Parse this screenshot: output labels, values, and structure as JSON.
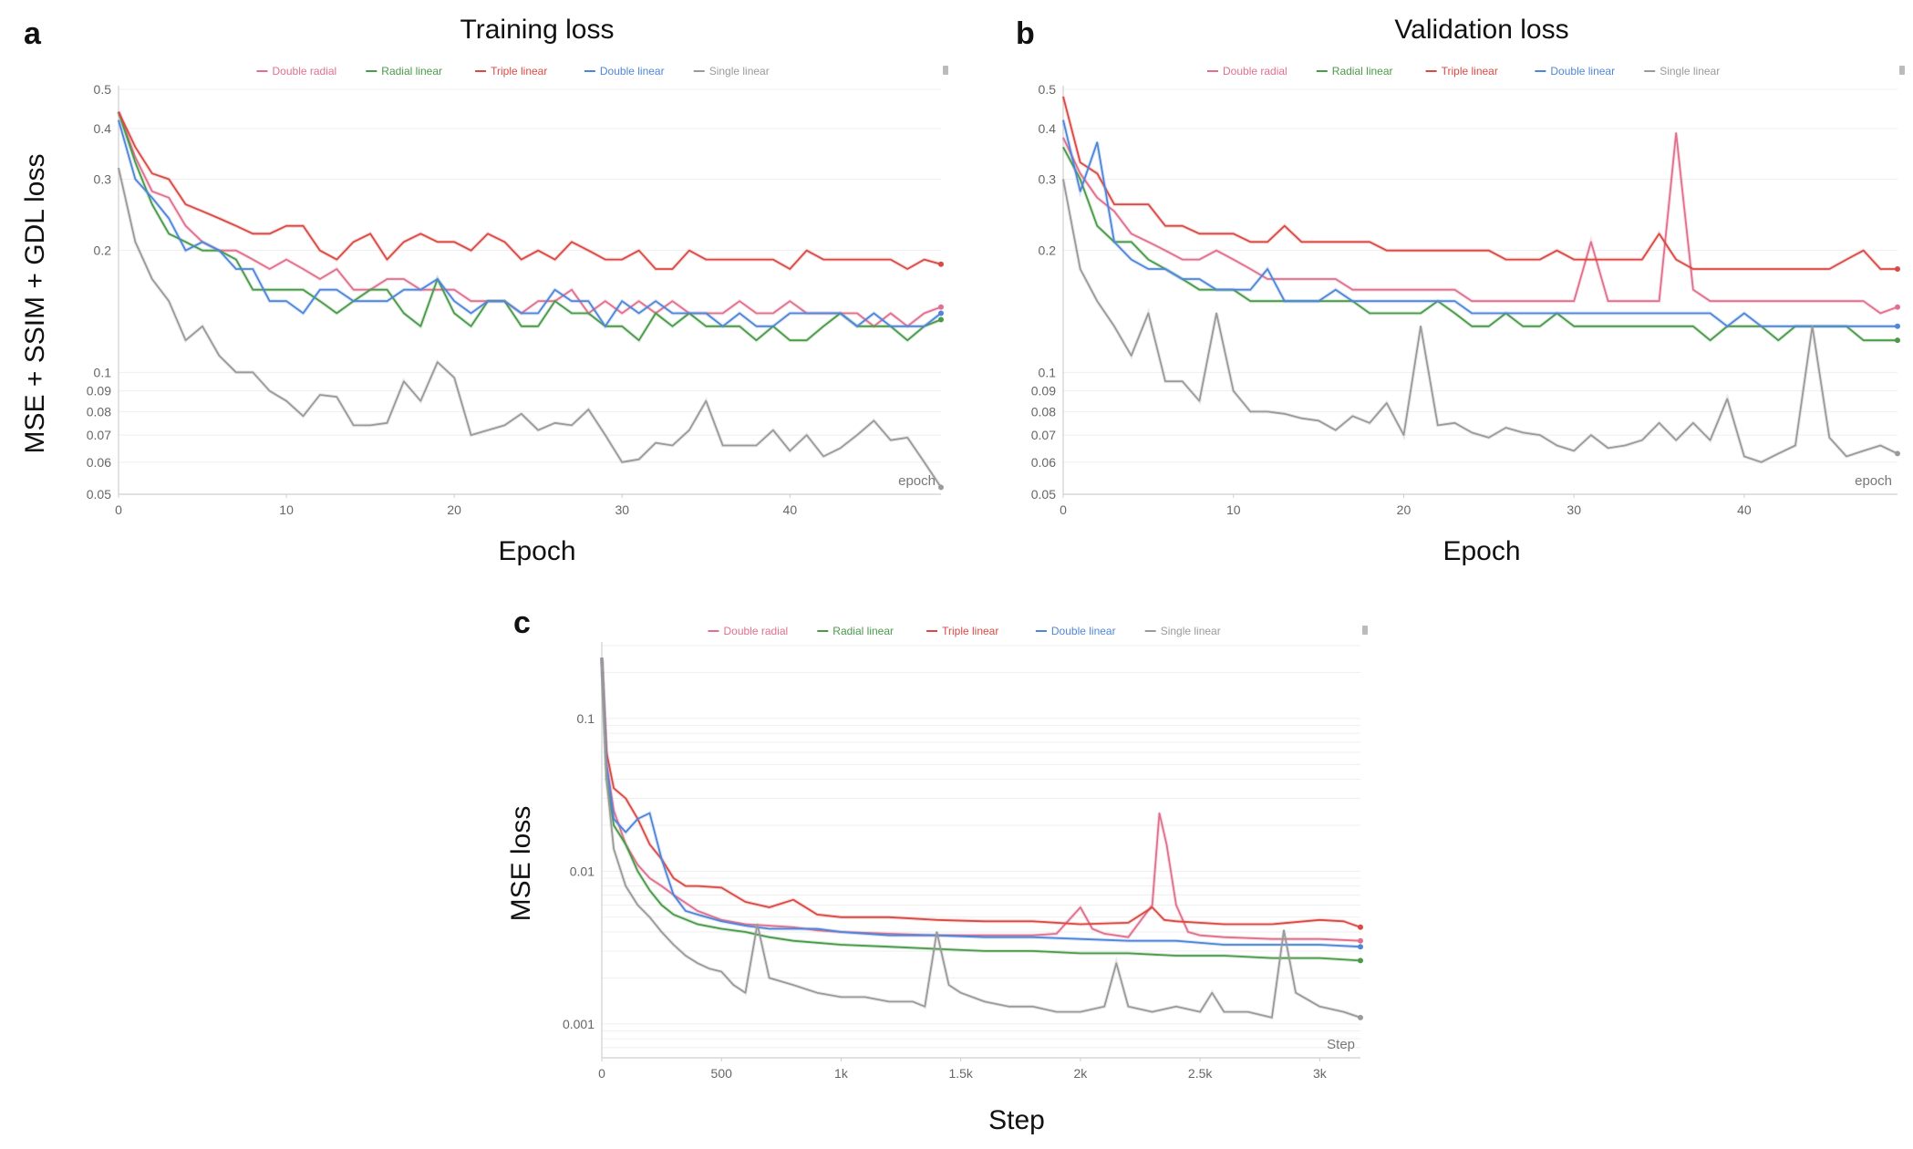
{
  "figure": {
    "panels": [
      {
        "letter": "a",
        "title": "Training loss",
        "xlabel": "Epoch",
        "ylabel": "MSE + SSIM + GDL loss"
      },
      {
        "letter": "b",
        "title": "Validation loss",
        "xlabel": "Epoch"
      },
      {
        "letter": "c",
        "xlabel": "Step",
        "ylabel": "MSE loss"
      }
    ]
  },
  "chart_data": [
    {
      "id": "a",
      "type": "line",
      "title": "Training loss",
      "xlabel": "Epoch",
      "ylabel": "MSE + SSIM + GDL loss",
      "yscale": "log",
      "xlim": [
        0,
        49
      ],
      "ylim": [
        0.05,
        0.5
      ],
      "xticks": [
        0,
        10,
        20,
        30,
        40
      ],
      "xtick_labels": [
        "0",
        "10",
        "20",
        "30",
        "40"
      ],
      "yticks": [
        0.05,
        0.06,
        0.07,
        0.08,
        0.09,
        0.1,
        0.2,
        0.3,
        0.4,
        0.5
      ],
      "ytick_labels": [
        "0.05",
        "0.06",
        "0.07",
        "0.08",
        "0.09",
        "0.1",
        "0.2",
        "0.3",
        "0.4",
        "0.5"
      ],
      "axis_tag": "epoch",
      "legend_position": "top",
      "series": [
        {
          "name": "Double radial",
          "color": "#e0708e",
          "values": [
            0.44,
            0.34,
            0.28,
            0.27,
            0.23,
            0.21,
            0.2,
            0.2,
            0.19,
            0.18,
            0.19,
            0.18,
            0.17,
            0.18,
            0.16,
            0.16,
            0.17,
            0.17,
            0.16,
            0.16,
            0.16,
            0.15,
            0.15,
            0.15,
            0.14,
            0.15,
            0.15,
            0.16,
            0.14,
            0.15,
            0.14,
            0.15,
            0.14,
            0.15,
            0.14,
            0.14,
            0.14,
            0.15,
            0.14,
            0.14,
            0.15,
            0.14,
            0.14,
            0.14,
            0.14,
            0.13,
            0.14,
            0.13,
            0.14,
            0.145
          ]
        },
        {
          "name": "Radial linear",
          "color": "#4a9a4a",
          "values": [
            0.44,
            0.33,
            0.26,
            0.22,
            0.21,
            0.2,
            0.2,
            0.19,
            0.16,
            0.16,
            0.16,
            0.16,
            0.15,
            0.14,
            0.15,
            0.16,
            0.16,
            0.14,
            0.13,
            0.17,
            0.14,
            0.13,
            0.15,
            0.15,
            0.13,
            0.13,
            0.15,
            0.14,
            0.14,
            0.13,
            0.13,
            0.12,
            0.14,
            0.13,
            0.14,
            0.13,
            0.13,
            0.13,
            0.12,
            0.13,
            0.12,
            0.12,
            0.13,
            0.14,
            0.13,
            0.13,
            0.13,
            0.12,
            0.13,
            0.135
          ]
        },
        {
          "name": "Triple linear",
          "color": "#d94a45",
          "values": [
            0.44,
            0.36,
            0.31,
            0.3,
            0.26,
            0.25,
            0.24,
            0.23,
            0.22,
            0.22,
            0.23,
            0.23,
            0.2,
            0.19,
            0.21,
            0.22,
            0.19,
            0.21,
            0.22,
            0.21,
            0.21,
            0.2,
            0.22,
            0.21,
            0.19,
            0.2,
            0.19,
            0.21,
            0.2,
            0.19,
            0.19,
            0.2,
            0.18,
            0.18,
            0.2,
            0.19,
            0.19,
            0.19,
            0.19,
            0.19,
            0.18,
            0.2,
            0.19,
            0.19,
            0.19,
            0.19,
            0.19,
            0.18,
            0.19,
            0.185
          ]
        },
        {
          "name": "Double linear",
          "color": "#4f86d9",
          "values": [
            0.42,
            0.3,
            0.27,
            0.24,
            0.2,
            0.21,
            0.2,
            0.18,
            0.18,
            0.15,
            0.15,
            0.14,
            0.16,
            0.16,
            0.15,
            0.15,
            0.15,
            0.16,
            0.16,
            0.17,
            0.15,
            0.14,
            0.15,
            0.15,
            0.14,
            0.14,
            0.16,
            0.15,
            0.15,
            0.13,
            0.15,
            0.14,
            0.15,
            0.14,
            0.14,
            0.14,
            0.13,
            0.14,
            0.13,
            0.13,
            0.14,
            0.14,
            0.14,
            0.14,
            0.13,
            0.14,
            0.13,
            0.13,
            0.13,
            0.14
          ]
        },
        {
          "name": "Single linear",
          "color": "#9a9a9a",
          "values": [
            0.32,
            0.21,
            0.17,
            0.15,
            0.12,
            0.13,
            0.11,
            0.1,
            0.1,
            0.09,
            0.085,
            0.078,
            0.088,
            0.087,
            0.074,
            0.074,
            0.075,
            0.095,
            0.085,
            0.106,
            0.097,
            0.07,
            0.072,
            0.074,
            0.079,
            0.072,
            0.075,
            0.074,
            0.081,
            0.07,
            0.06,
            0.061,
            0.067,
            0.066,
            0.072,
            0.085,
            0.066,
            0.066,
            0.066,
            0.072,
            0.064,
            0.07,
            0.062,
            0.065,
            0.07,
            0.076,
            0.068,
            0.069,
            0.06,
            0.052
          ]
        }
      ]
    },
    {
      "id": "b",
      "type": "line",
      "title": "Validation loss",
      "xlabel": "Epoch",
      "yscale": "log",
      "xlim": [
        0,
        49
      ],
      "ylim": [
        0.05,
        0.5
      ],
      "xticks": [
        0,
        10,
        20,
        30,
        40
      ],
      "xtick_labels": [
        "0",
        "10",
        "20",
        "30",
        "40"
      ],
      "yticks": [
        0.05,
        0.06,
        0.07,
        0.08,
        0.09,
        0.1,
        0.2,
        0.3,
        0.4,
        0.5
      ],
      "ytick_labels": [
        "0.05",
        "0.06",
        "0.07",
        "0.08",
        "0.09",
        "0.1",
        "0.2",
        "0.3",
        "0.4",
        "0.5"
      ],
      "axis_tag": "epoch",
      "legend_position": "top",
      "series": [
        {
          "name": "Double radial",
          "color": "#e0708e",
          "values": [
            0.38,
            0.31,
            0.27,
            0.25,
            0.22,
            0.21,
            0.2,
            0.19,
            0.19,
            0.2,
            0.19,
            0.18,
            0.17,
            0.17,
            0.17,
            0.17,
            0.17,
            0.16,
            0.16,
            0.16,
            0.16,
            0.16,
            0.16,
            0.16,
            0.15,
            0.15,
            0.15,
            0.15,
            0.15,
            0.15,
            0.15,
            0.21,
            0.15,
            0.15,
            0.15,
            0.15,
            0.39,
            0.16,
            0.15,
            0.15,
            0.15,
            0.15,
            0.15,
            0.15,
            0.15,
            0.15,
            0.15,
            0.15,
            0.14,
            0.145
          ]
        },
        {
          "name": "Radial linear",
          "color": "#4a9a4a",
          "values": [
            0.36,
            0.3,
            0.23,
            0.21,
            0.21,
            0.19,
            0.18,
            0.17,
            0.16,
            0.16,
            0.16,
            0.15,
            0.15,
            0.15,
            0.15,
            0.15,
            0.15,
            0.15,
            0.14,
            0.14,
            0.14,
            0.14,
            0.15,
            0.14,
            0.13,
            0.13,
            0.14,
            0.13,
            0.13,
            0.14,
            0.13,
            0.13,
            0.13,
            0.13,
            0.13,
            0.13,
            0.13,
            0.13,
            0.12,
            0.13,
            0.13,
            0.13,
            0.12,
            0.13,
            0.13,
            0.13,
            0.13,
            0.12,
            0.12,
            0.12
          ]
        },
        {
          "name": "Triple linear",
          "color": "#d94a45",
          "values": [
            0.48,
            0.33,
            0.31,
            0.26,
            0.26,
            0.26,
            0.23,
            0.23,
            0.22,
            0.22,
            0.22,
            0.21,
            0.21,
            0.23,
            0.21,
            0.21,
            0.21,
            0.21,
            0.21,
            0.2,
            0.2,
            0.2,
            0.2,
            0.2,
            0.2,
            0.2,
            0.19,
            0.19,
            0.19,
            0.2,
            0.19,
            0.19,
            0.19,
            0.19,
            0.19,
            0.22,
            0.19,
            0.18,
            0.18,
            0.18,
            0.18,
            0.18,
            0.18,
            0.18,
            0.18,
            0.18,
            0.19,
            0.2,
            0.18,
            0.18
          ]
        },
        {
          "name": "Double linear",
          "color": "#4f86d9",
          "values": [
            0.42,
            0.28,
            0.37,
            0.21,
            0.19,
            0.18,
            0.18,
            0.17,
            0.17,
            0.16,
            0.16,
            0.16,
            0.18,
            0.15,
            0.15,
            0.15,
            0.16,
            0.15,
            0.15,
            0.15,
            0.15,
            0.15,
            0.15,
            0.15,
            0.14,
            0.14,
            0.14,
            0.14,
            0.14,
            0.14,
            0.14,
            0.14,
            0.14,
            0.14,
            0.14,
            0.14,
            0.14,
            0.14,
            0.14,
            0.13,
            0.14,
            0.13,
            0.13,
            0.13,
            0.13,
            0.13,
            0.13,
            0.13,
            0.13,
            0.13
          ]
        },
        {
          "name": "Single linear",
          "color": "#9a9a9a",
          "values": [
            0.3,
            0.18,
            0.15,
            0.13,
            0.11,
            0.14,
            0.095,
            0.095,
            0.085,
            0.14,
            0.09,
            0.08,
            0.08,
            0.079,
            0.077,
            0.076,
            0.072,
            0.078,
            0.075,
            0.084,
            0.07,
            0.13,
            0.074,
            0.075,
            0.071,
            0.069,
            0.073,
            0.071,
            0.07,
            0.066,
            0.064,
            0.07,
            0.065,
            0.066,
            0.068,
            0.075,
            0.068,
            0.075,
            0.068,
            0.086,
            0.062,
            0.06,
            0.063,
            0.066,
            0.13,
            0.069,
            0.062,
            0.064,
            0.066,
            0.063
          ]
        }
      ]
    },
    {
      "id": "c",
      "type": "line",
      "xlabel": "Step",
      "ylabel": "MSE loss",
      "yscale": "log",
      "xlim": [
        0,
        3170
      ],
      "ylim": [
        0.0006,
        0.3
      ],
      "xticks": [
        0,
        500,
        1000,
        1500,
        2000,
        2500,
        3000
      ],
      "xtick_labels": [
        "0",
        "500",
        "1k",
        "1.5k",
        "2k",
        "2.5k",
        "3k"
      ],
      "yticks": [
        0.001,
        0.01,
        0.1
      ],
      "ytick_labels": [
        "0.001",
        "0.01",
        "0.1"
      ],
      "axis_tag": "Step",
      "legend_position": "top",
      "series": [
        {
          "name": "Double radial",
          "color": "#e0708e",
          "x": [
            0,
            20,
            50,
            100,
            150,
            200,
            250,
            300,
            400,
            500,
            600,
            700,
            800,
            900,
            1000,
            1200,
            1400,
            1600,
            1800,
            1900,
            2000,
            2050,
            2100,
            2200,
            2300,
            2330,
            2360,
            2400,
            2450,
            2500,
            2600,
            2800,
            3000,
            3170
          ],
          "values": [
            0.25,
            0.05,
            0.025,
            0.015,
            0.011,
            0.009,
            0.008,
            0.007,
            0.0055,
            0.0048,
            0.0045,
            0.0044,
            0.0043,
            0.0041,
            0.004,
            0.0039,
            0.0038,
            0.0038,
            0.0038,
            0.0039,
            0.0058,
            0.0042,
            0.0039,
            0.0037,
            0.006,
            0.024,
            0.015,
            0.006,
            0.004,
            0.0038,
            0.0037,
            0.0036,
            0.0036,
            0.0035
          ]
        },
        {
          "name": "Radial linear",
          "color": "#4a9a4a",
          "x": [
            0,
            20,
            50,
            100,
            150,
            200,
            250,
            300,
            400,
            500,
            600,
            700,
            800,
            900,
            1000,
            1200,
            1400,
            1600,
            1800,
            2000,
            2200,
            2400,
            2600,
            2800,
            3000,
            3170
          ],
          "values": [
            0.25,
            0.04,
            0.02,
            0.015,
            0.01,
            0.0075,
            0.006,
            0.0052,
            0.0045,
            0.0042,
            0.004,
            0.0037,
            0.0035,
            0.0034,
            0.0033,
            0.0032,
            0.0031,
            0.003,
            0.003,
            0.0029,
            0.0029,
            0.0028,
            0.0028,
            0.0027,
            0.0027,
            0.0026
          ]
        },
        {
          "name": "Triple linear",
          "color": "#d94a45",
          "x": [
            0,
            20,
            50,
            100,
            150,
            200,
            250,
            300,
            350,
            400,
            500,
            600,
            700,
            800,
            900,
            1000,
            1200,
            1400,
            1600,
            1800,
            2000,
            2200,
            2300,
            2350,
            2400,
            2600,
            2800,
            3000,
            3100,
            3170
          ],
          "values": [
            0.25,
            0.06,
            0.035,
            0.03,
            0.022,
            0.015,
            0.012,
            0.009,
            0.008,
            0.008,
            0.0078,
            0.0063,
            0.0058,
            0.0065,
            0.0052,
            0.005,
            0.005,
            0.0048,
            0.0047,
            0.0047,
            0.0045,
            0.0046,
            0.0058,
            0.0048,
            0.0047,
            0.0045,
            0.0045,
            0.0048,
            0.0047,
            0.0043
          ]
        },
        {
          "name": "Double linear",
          "color": "#4f86d9",
          "x": [
            0,
            20,
            50,
            100,
            150,
            200,
            250,
            300,
            350,
            400,
            500,
            600,
            700,
            800,
            900,
            1000,
            1200,
            1400,
            1600,
            1800,
            2000,
            2200,
            2400,
            2600,
            2800,
            3000,
            3170
          ],
          "values": [
            0.25,
            0.05,
            0.022,
            0.018,
            0.022,
            0.024,
            0.012,
            0.007,
            0.0055,
            0.0052,
            0.0047,
            0.0044,
            0.0042,
            0.0042,
            0.0042,
            0.004,
            0.0038,
            0.0038,
            0.0037,
            0.0037,
            0.0036,
            0.0035,
            0.0035,
            0.0033,
            0.0033,
            0.0033,
            0.0032
          ]
        },
        {
          "name": "Single linear",
          "color": "#9a9a9a",
          "x": [
            0,
            20,
            50,
            100,
            150,
            200,
            250,
            300,
            350,
            400,
            450,
            500,
            550,
            600,
            650,
            700,
            800,
            900,
            1000,
            1100,
            1200,
            1300,
            1350,
            1400,
            1450,
            1500,
            1600,
            1700,
            1800,
            1900,
            2000,
            2100,
            2150,
            2200,
            2300,
            2400,
            2500,
            2550,
            2600,
            2700,
            2800,
            2850,
            2900,
            3000,
            3100,
            3170
          ],
          "values": [
            0.25,
            0.04,
            0.014,
            0.008,
            0.006,
            0.005,
            0.004,
            0.0033,
            0.0028,
            0.0025,
            0.0023,
            0.0022,
            0.0018,
            0.0016,
            0.0045,
            0.002,
            0.0018,
            0.0016,
            0.0015,
            0.0015,
            0.0014,
            0.0014,
            0.0013,
            0.004,
            0.0018,
            0.0016,
            0.0014,
            0.0013,
            0.0013,
            0.0012,
            0.0012,
            0.0013,
            0.0025,
            0.0013,
            0.0012,
            0.0013,
            0.0012,
            0.0016,
            0.0012,
            0.0012,
            0.0011,
            0.0041,
            0.0016,
            0.0013,
            0.0012,
            0.0011
          ]
        }
      ]
    }
  ]
}
